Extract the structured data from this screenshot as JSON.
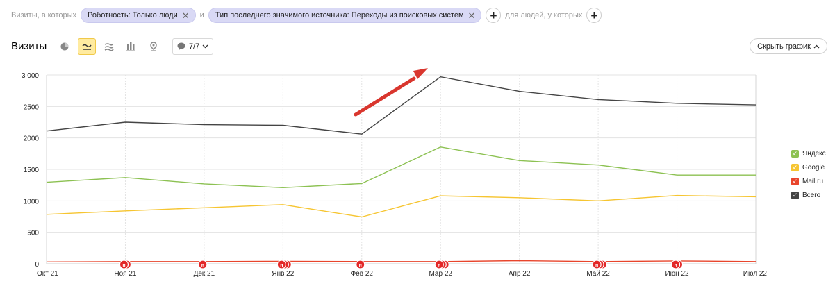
{
  "filters": {
    "lead_text": "Визиты, в которых",
    "chip1": "Роботность: Только люди",
    "and_text": "и",
    "chip2": "Тип последнего значимого источника: Переходы из поисковых систем",
    "people_text": "для людей, у которых"
  },
  "toolbar": {
    "title": "Визиты",
    "series_count": "7/7",
    "hide_chart": "Скрыть график"
  },
  "legend": [
    {
      "label": "Яндекс",
      "color": "#8cc152"
    },
    {
      "label": "Google",
      "color": "#f6c531"
    },
    {
      "label": "Mail.ru",
      "color": "#e8452c"
    },
    {
      "label": "Всего",
      "color": "#444444"
    }
  ],
  "chart_data": {
    "type": "line",
    "categories": [
      "Окт 21",
      "Ноя 21",
      "Дек 21",
      "Янв 22",
      "Фев 22",
      "Мар 22",
      "Апр 22",
      "Май 22",
      "Июн 22",
      "Июл 22"
    ],
    "ylim": [
      0,
      3000
    ],
    "yticks": [
      "0",
      "500",
      "1000",
      "1500",
      "2000",
      "2500",
      "3 000"
    ],
    "ytick_values": [
      0,
      500,
      1000,
      1500,
      2000,
      2500,
      3000
    ],
    "grid": true,
    "legend_position": "right",
    "series": [
      {
        "name": "Всего",
        "color": "#444444",
        "values": [
          2110,
          2250,
          2210,
          2200,
          2060,
          2970,
          2740,
          2610,
          2550,
          2525
        ]
      },
      {
        "name": "Яндекс",
        "color": "#8cc152",
        "values": [
          1295,
          1370,
          1270,
          1210,
          1275,
          1855,
          1640,
          1570,
          1410,
          1410
        ]
      },
      {
        "name": "Google",
        "color": "#f6c531",
        "values": [
          785,
          840,
          890,
          940,
          745,
          1080,
          1050,
          1000,
          1085,
          1065
        ]
      },
      {
        "name": "Mail.ru",
        "color": "#e8452c",
        "values": [
          30,
          35,
          35,
          40,
          35,
          35,
          50,
          35,
          45,
          35
        ]
      }
    ],
    "annotations": [
      {
        "category": "Ноя 21",
        "count": 2,
        "label": "н"
      },
      {
        "category": "Дек 21",
        "count": 1,
        "label": "н"
      },
      {
        "category": "Янв 22",
        "count": 3,
        "label": "н"
      },
      {
        "category": "Фев 22",
        "count": 1,
        "label": "н"
      },
      {
        "category": "Мар 22",
        "count": 3,
        "label": "н"
      },
      {
        "category": "Май 22",
        "count": 3,
        "label": "н"
      },
      {
        "category": "Июн 22",
        "count": 2,
        "label": "н"
      }
    ]
  }
}
